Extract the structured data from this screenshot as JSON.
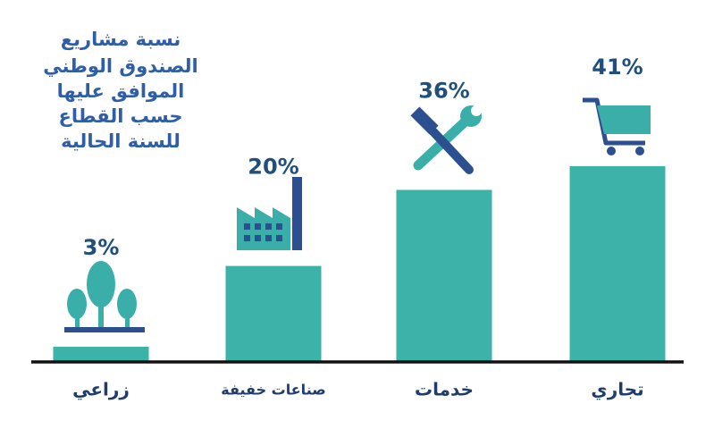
{
  "chart_data": {
    "type": "bar",
    "title": [
      "نسبة مشاريع",
      "الصندوق الوطني",
      "الموافق عليها",
      "حسب القطاع",
      "للسنة الحالية"
    ],
    "categories": [
      "زراعي",
      "صناعات خفيفة",
      "خدمات",
      "تجاري"
    ],
    "values": [
      3,
      20,
      36,
      41
    ],
    "value_labels": [
      "3%",
      "20%",
      "36%",
      "41%"
    ],
    "color": "#3bb3a8"
  }
}
